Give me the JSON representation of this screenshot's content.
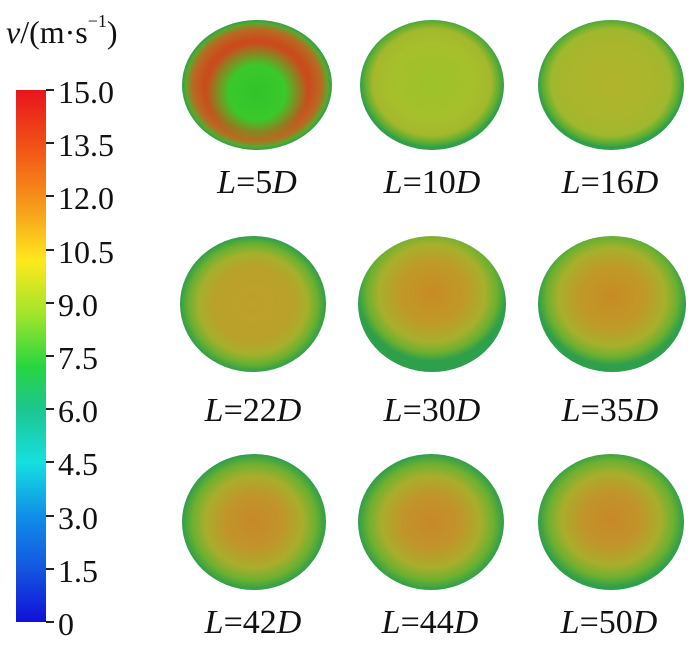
{
  "legend": {
    "title_symbol": "v",
    "title_unit": "/(m·s",
    "title_exp": "−1",
    "title_close": ")",
    "ticks": [
      "15.0",
      "13.5",
      "12.0",
      "10.5",
      "9.0",
      "7.5",
      "6.0",
      "4.5",
      "3.0",
      "1.5",
      "0"
    ]
  },
  "sections": [
    {
      "name": "L",
      "eq": "=",
      "value": "5",
      "unit": "D"
    },
    {
      "name": "L",
      "eq": "=",
      "value": "10",
      "unit": "D"
    },
    {
      "name": "L",
      "eq": "=",
      "value": "16",
      "unit": "D"
    },
    {
      "name": "L",
      "eq": "=",
      "value": "22",
      "unit": "D"
    },
    {
      "name": "L",
      "eq": "=",
      "value": "30",
      "unit": "D"
    },
    {
      "name": "L",
      "eq": "=",
      "value": "35",
      "unit": "D"
    },
    {
      "name": "L",
      "eq": "=",
      "value": "42",
      "unit": "D"
    },
    {
      "name": "L",
      "eq": "=",
      "value": "44",
      "unit": "D"
    },
    {
      "name": "L",
      "eq": "=",
      "value": "50",
      "unit": "D"
    }
  ]
}
